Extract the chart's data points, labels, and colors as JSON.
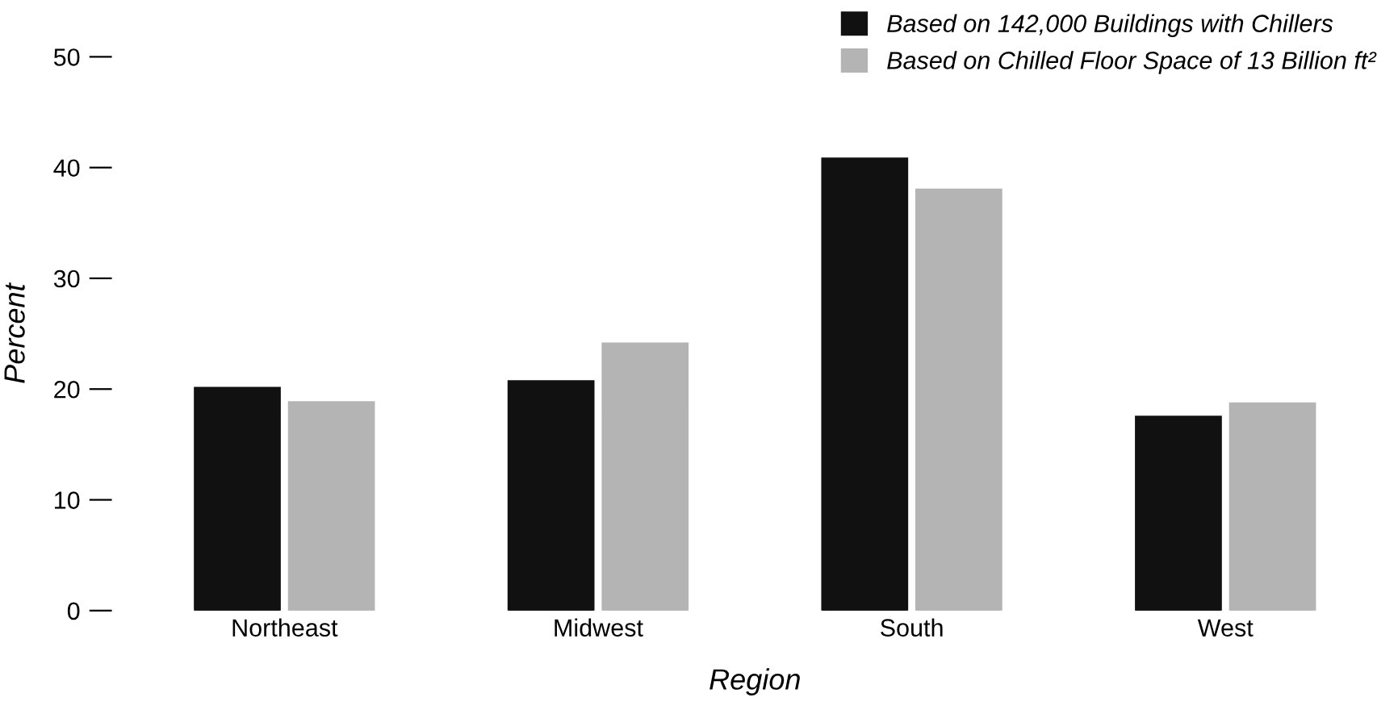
{
  "chart_data": {
    "type": "bar",
    "xlabel": "Region",
    "ylabel": "Percent",
    "categories": [
      "Northeast",
      "Midwest",
      "South",
      "West"
    ],
    "series": [
      {
        "name": "Based on 142,000 Buildings with Chillers",
        "color": "#111111",
        "values": [
          20.1,
          20.7,
          40.8,
          17.5
        ]
      },
      {
        "name": "Based on Chilled Floor Space of 13 Billion ft²",
        "color": "#b4b4b4",
        "values": [
          18.8,
          24.1,
          38.0,
          18.7
        ]
      }
    ],
    "ylim": [
      0,
      50
    ],
    "yticks": [
      0,
      10,
      20,
      30,
      40,
      50
    ],
    "grid": false,
    "legend": "top right"
  }
}
